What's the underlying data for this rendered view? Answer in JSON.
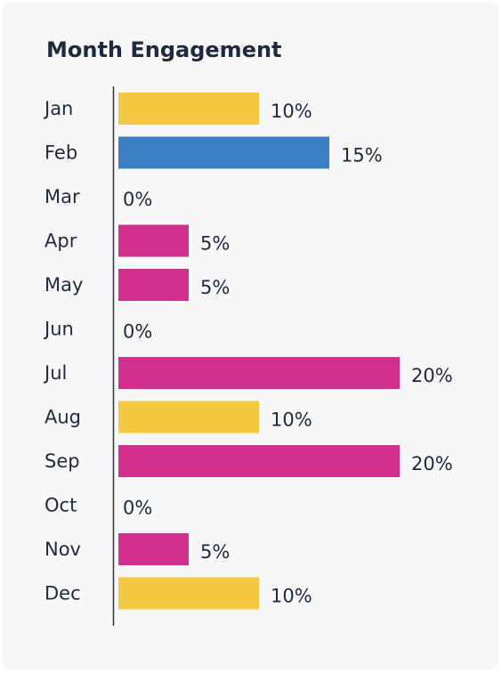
{
  "colors": {
    "yellow": "#f5c842",
    "blue": "#3a7fc4",
    "magenta": "#d22f8f",
    "text": "#1f2a3c",
    "axis": "#2a3344",
    "card_bg": "#f7f7f8"
  },
  "chart_data": {
    "type": "bar",
    "orientation": "horizontal",
    "title": "Month Engagement",
    "xlabel": "",
    "ylabel": "",
    "xlim": [
      0,
      20
    ],
    "grid": false,
    "value_suffix": "%",
    "categories": [
      "Jan",
      "Feb",
      "Mar",
      "Apr",
      "May",
      "Jun",
      "Jul",
      "Aug",
      "Sep",
      "Oct",
      "Nov",
      "Dec"
    ],
    "values": [
      10,
      15,
      0,
      5,
      5,
      0,
      20,
      10,
      20,
      0,
      5,
      10
    ],
    "value_labels": [
      "10%",
      "15%",
      "0%",
      "5%",
      "5%",
      "0%",
      "20%",
      "10%",
      "20%",
      "0%",
      "5%",
      "10%"
    ],
    "bar_colors": [
      "#f5c842",
      "#3a7fc4",
      "#d22f8f",
      "#d22f8f",
      "#d22f8f",
      "#d22f8f",
      "#d22f8f",
      "#f5c842",
      "#d22f8f",
      "#d22f8f",
      "#d22f8f",
      "#f5c842"
    ]
  }
}
